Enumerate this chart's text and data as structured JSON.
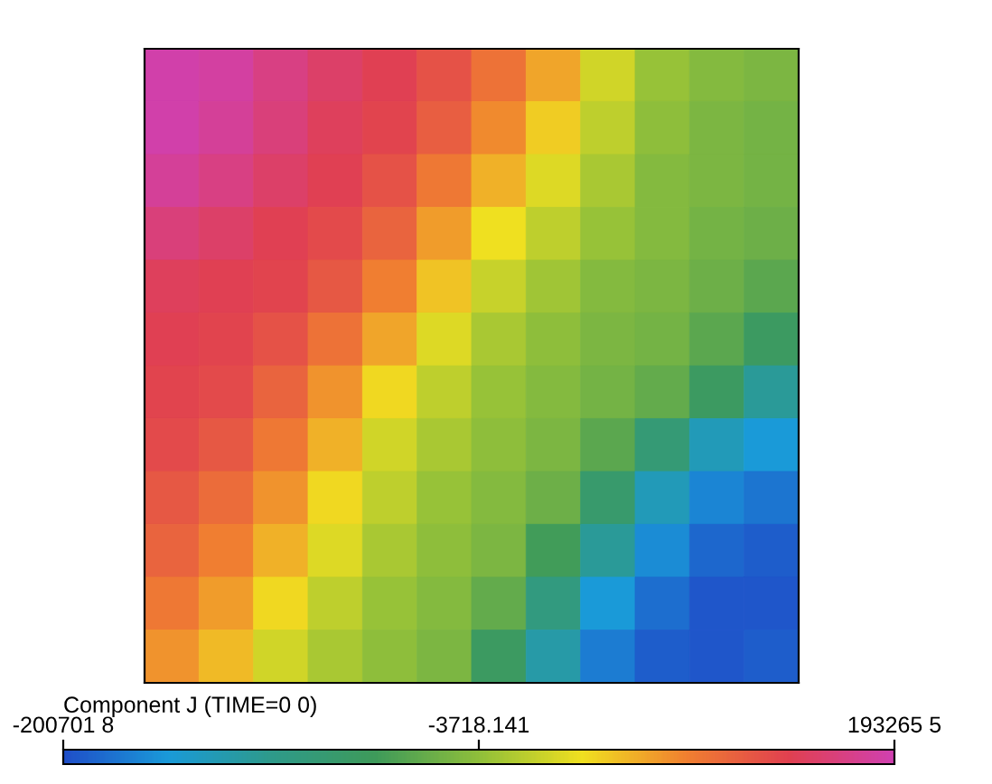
{
  "chart_data": {
    "type": "heatmap",
    "clabel": "Component J (TIME=0 0)",
    "categories": [
      null,
      null,
      null,
      null,
      null,
      null,
      null,
      null,
      null,
      null,
      null,
      null
    ],
    "y_categories": [
      null,
      null,
      null,
      null,
      null,
      null,
      null,
      null,
      null,
      null,
      null,
      null
    ],
    "cells": [
      [
        190000,
        185000,
        170000,
        155000,
        145000,
        130000,
        105000,
        75000,
        30000,
        0,
        -10000,
        -15000
      ],
      [
        190000,
        180000,
        165000,
        150000,
        140000,
        120000,
        90000,
        55000,
        20000,
        -5000,
        -15000,
        -20000
      ],
      [
        180000,
        170000,
        155000,
        145000,
        130000,
        100000,
        70000,
        35000,
        10000,
        -10000,
        -15000,
        -20000
      ],
      [
        165000,
        155000,
        145000,
        135000,
        115000,
        80000,
        45000,
        20000,
        0,
        -10000,
        -20000,
        -25000
      ],
      [
        150000,
        145000,
        140000,
        125000,
        95000,
        60000,
        25000,
        5000,
        -10000,
        -15000,
        -25000,
        -35000
      ],
      [
        145000,
        140000,
        130000,
        105000,
        75000,
        35000,
        10000,
        -5000,
        -15000,
        -20000,
        -35000,
        -60000
      ],
      [
        140000,
        135000,
        115000,
        85000,
        50000,
        20000,
        0,
        -10000,
        -20000,
        -30000,
        -60000,
        -110000
      ],
      [
        135000,
        125000,
        100000,
        70000,
        30000,
        10000,
        -5000,
        -15000,
        -35000,
        -80000,
        -130000,
        -150000
      ],
      [
        125000,
        110000,
        85000,
        50000,
        20000,
        0,
        -10000,
        -25000,
        -70000,
        -130000,
        -165000,
        -175000
      ],
      [
        115000,
        95000,
        70000,
        35000,
        10000,
        -5000,
        -15000,
        -50000,
        -110000,
        -160000,
        -185000,
        -190000
      ],
      [
        100000,
        80000,
        50000,
        20000,
        0,
        -10000,
        -30000,
        -90000,
        -150000,
        -180000,
        -195000,
        -195000
      ],
      [
        85000,
        65000,
        30000,
        10000,
        -5000,
        -15000,
        -60000,
        -120000,
        -170000,
        -190000,
        -195000,
        -190000
      ]
    ],
    "clim": [
      -200701.8,
      193265.5
    ],
    "cticks": [
      {
        "value": -200701.8,
        "label": "-200701 8"
      },
      {
        "value": -3718.141,
        "label": "-3718.141"
      },
      {
        "value": 193265.5,
        "label": "193265 5"
      }
    ],
    "colors": [
      "#1f4fc8",
      "#1a9ad8",
      "#2e9a8a",
      "#3e9a5a",
      "#8fbf3a",
      "#f0e020",
      "#f08030",
      "#e04050",
      "#d040b0"
    ],
    "tick_labels": false
  }
}
